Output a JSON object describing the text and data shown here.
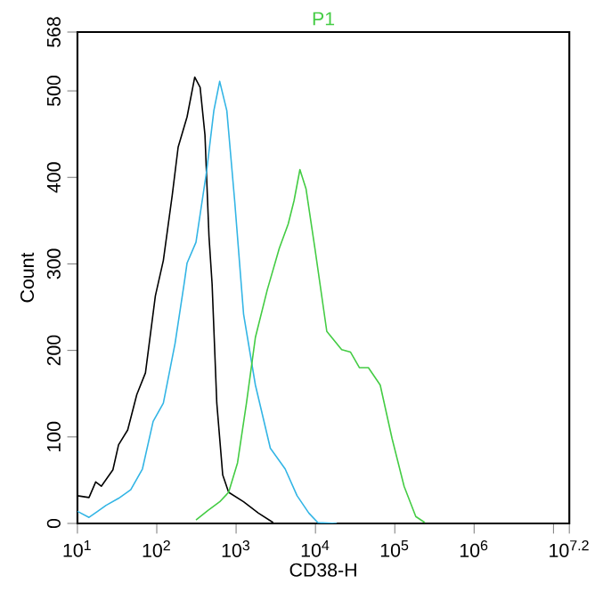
{
  "chart_data": {
    "type": "line",
    "title": "P1",
    "xlabel": "CD38-H",
    "ylabel": "Count",
    "log": "x",
    "xlim": [
      10,
      15848932
    ],
    "ylim": [
      0,
      568
    ],
    "xticks": [
      {
        "value": 10,
        "label": "10$^{1}$"
      },
      {
        "value": 100,
        "label": "10$^{2}$"
      },
      {
        "value": 1000,
        "label": "10$^{3}$"
      },
      {
        "value": 10000,
        "label": "10$^{4}$"
      },
      {
        "value": 100000,
        "label": "10$^{5}$"
      },
      {
        "value": 1000000,
        "label": "10$^{6}$"
      },
      {
        "value": 10000000,
        "label": null
      },
      {
        "value": 15848932,
        "label": "10$^{7.2}$"
      }
    ],
    "yticks": [
      0,
      100,
      200,
      300,
      400,
      500,
      568
    ],
    "grid": false,
    "marker": "none",
    "line_style": "solid",
    "series": [
      {
        "color": "#000000",
        "x": [
          10,
          14,
          17,
          20,
          28,
          33,
          43,
          56,
          72,
          96,
          121,
          157,
          186,
          241,
          301,
          352,
          405,
          455,
          498,
          571,
          678,
          805,
          1242,
          1910,
          2930
        ],
        "values": [
          32,
          30,
          48,
          43,
          62,
          91,
          108,
          149,
          174,
          263,
          304,
          380,
          435,
          470,
          516,
          504,
          449,
          332,
          277,
          139,
          56,
          36,
          25,
          12,
          1
        ]
      },
      {
        "color": "#33b5e5",
        "x": [
          10,
          14,
          18,
          23,
          33,
          47,
          66,
          90,
          121,
          170,
          221,
          241,
          312,
          426,
          524,
          621,
          764,
          959,
          1242,
          1750,
          2700,
          4150,
          5870,
          8260,
          10700,
          18600
        ],
        "values": [
          14,
          7,
          14,
          21,
          29,
          39,
          63,
          118,
          139,
          208,
          277,
          301,
          325,
          408,
          477,
          511,
          477,
          373,
          242,
          160,
          87,
          63,
          32,
          12,
          1,
          0
        ]
      },
      {
        "color": "#44cc44",
        "x": [
          312,
          442,
          621,
          805,
          1042,
          1350,
          1750,
          2470,
          3500,
          4530,
          5370,
          6370,
          7600,
          9840,
          13900,
          21400,
          27700,
          35900,
          46500,
          65500,
          92500,
          131000,
          184000,
          239000
        ],
        "values": [
          4,
          15,
          25,
          36,
          70,
          139,
          215,
          270,
          318,
          346,
          373,
          409,
          387,
          318,
          222,
          201,
          198,
          180,
          180,
          160,
          98,
          43,
          8,
          1
        ]
      }
    ]
  }
}
